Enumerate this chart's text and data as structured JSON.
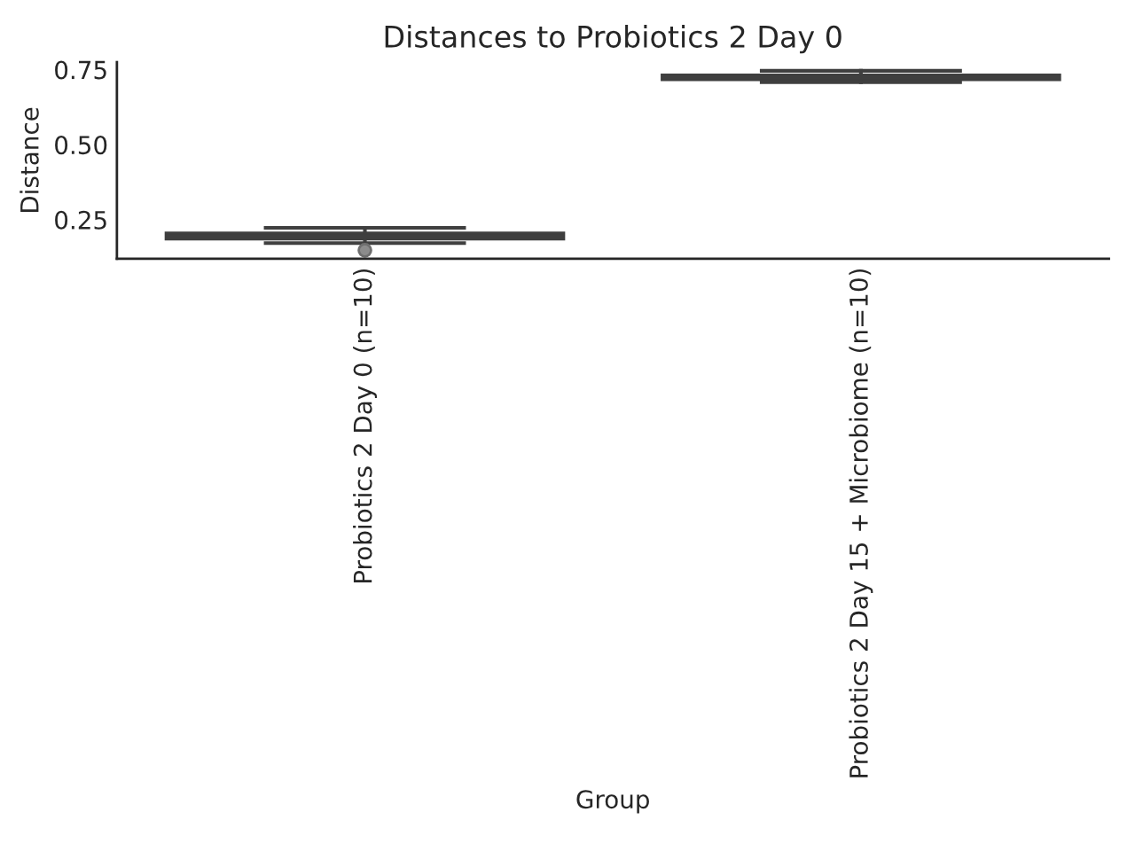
{
  "chart_data": {
    "type": "box",
    "title": "Distances to Probiotics 2 Day 0",
    "xlabel": "Group",
    "ylabel": "Distance",
    "categories": [
      "Probiotics 2 Day 0 (n=10)",
      "Probiotics 2 Day 15 + Microbiome (n=10)"
    ],
    "boxes": [
      {
        "low": 0.172,
        "q1": 0.187,
        "median": 0.195,
        "q3": 0.204,
        "high": 0.223,
        "outliers": [
          0.148
        ]
      },
      {
        "low": 0.708,
        "q1": 0.718,
        "median": 0.724,
        "q3": 0.731,
        "high": 0.746
      }
    ],
    "colors": [
      "#3f3f3f",
      "#3f3f3f"
    ],
    "ylim": [
      0.12,
      0.775
    ],
    "yticks": [
      0.25,
      {
        "value": 0.5,
        "label": "0.50"
      },
      0.75
    ]
  }
}
